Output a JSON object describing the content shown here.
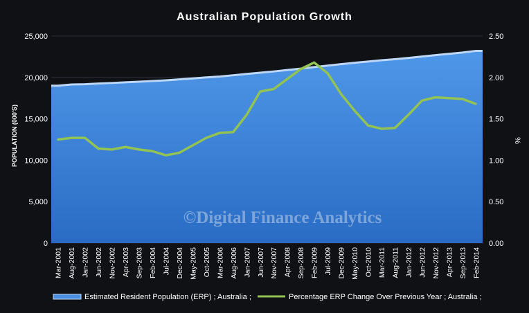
{
  "chart_data": {
    "type": "area",
    "title": "Australian Population Growth",
    "ylabel": "POPULATION (000'S)",
    "y2label": "%",
    "watermark": "©Digital Finance Analytics",
    "ylim": [
      0,
      25000
    ],
    "y2lim": [
      0,
      2.5
    ],
    "yticks": [
      "0",
      "5,000",
      "10,000",
      "15,000",
      "20,000",
      "25,000"
    ],
    "y2ticks": [
      "0.00",
      "0.50",
      "1.00",
      "1.50",
      "2.00",
      "2.50"
    ],
    "grid": true,
    "legend_position": "bottom",
    "colors": {
      "area": "#4a8fe0",
      "area_top": "#bcd7f7",
      "line": "#93c353",
      "background": "#0f1115",
      "text": "#ffffff"
    },
    "categories": [
      "Mar-2001",
      "Aug-2001",
      "Jan-2002",
      "Jun-2002",
      "Nov-2002",
      "Apr-2003",
      "Sep-2003",
      "Feb-2004",
      "Jul-2004",
      "Dec-2004",
      "May-2005",
      "Oct-2005",
      "Mar-2006",
      "Aug-2006",
      "Jan-2007",
      "Jun-2007",
      "Nov-2007",
      "Apr-2008",
      "Sep-2008",
      "Feb-2009",
      "Jul-2009",
      "Dec-2009",
      "May-2010",
      "Oct-2010",
      "Mar-2011",
      "Aug-2011",
      "Jan-2012",
      "Jun-2012",
      "Nov-2012",
      "Apr-2013",
      "Sep-2013",
      "Feb-2014"
    ],
    "series": [
      {
        "name": "Estimated Resident Population (ERP) ; Australia ;",
        "axis": "left",
        "kind": "area",
        "values": [
          19000,
          19150,
          19180,
          19260,
          19330,
          19410,
          19480,
          19570,
          19650,
          19760,
          19880,
          20000,
          20110,
          20260,
          20420,
          20570,
          20720,
          20890,
          21060,
          21250,
          21430,
          21600,
          21770,
          21920,
          22070,
          22200,
          22360,
          22520,
          22690,
          22850,
          23000,
          23200
        ]
      },
      {
        "name": "Percentage ERP Change Over Previous Year ; Australia ;",
        "axis": "right",
        "kind": "line",
        "values": [
          1.25,
          1.27,
          1.27,
          1.14,
          1.13,
          1.16,
          1.13,
          1.11,
          1.06,
          1.09,
          1.18,
          1.27,
          1.33,
          1.34,
          1.55,
          1.83,
          1.86,
          1.98,
          2.1,
          2.18,
          2.05,
          1.8,
          1.6,
          1.42,
          1.38,
          1.39,
          1.55,
          1.72,
          1.76,
          1.75,
          1.74,
          1.68
        ]
      }
    ]
  }
}
